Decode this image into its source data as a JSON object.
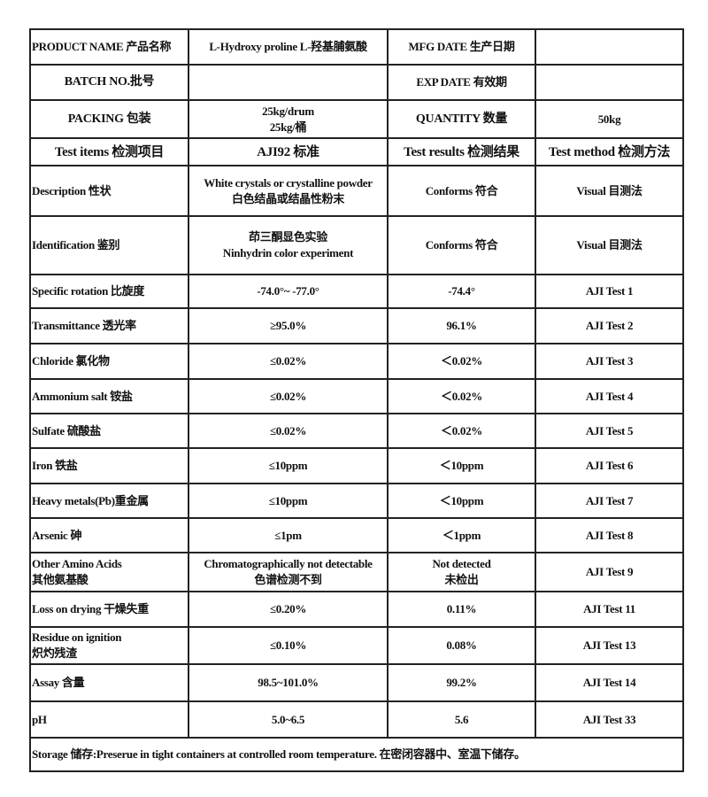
{
  "header": {
    "product_name_label": "PRODUCT NAME 产品名称",
    "product_name_value": "L-Hydroxy proline L-羟基脯氨酸",
    "mfg_date_label": "MFG DATE 生产日期",
    "mfg_date_value": "",
    "batch_no_label": "BATCH NO.批号",
    "batch_no_value": "",
    "exp_date_label": "EXP DATE  有效期",
    "exp_date_value": "",
    "packing_label": "PACKING 包装",
    "packing_value_1": "25kg/drum",
    "packing_value_2": "25kg/桶",
    "quantity_label": "QUANTITY  数量",
    "quantity_value": "50kg"
  },
  "columns": [
    "Test items    检测项目",
    "AJI92  标准",
    "Test results 检测结果",
    "Test method 检测方法"
  ],
  "rows": [
    {
      "item": [
        "Description  性状"
      ],
      "standard": [
        "White crystals or crystalline powder",
        "白色结晶或结晶性粉末"
      ],
      "result": [
        "Conforms  符合"
      ],
      "method": "Visual  目测法"
    },
    {
      "item": [
        "Identification  鉴别"
      ],
      "standard": [
        "茚三酮显色实验",
        "Ninhydrin color experiment"
      ],
      "result": [
        "Conforms  符合"
      ],
      "method": "Visual  目测法"
    },
    {
      "item": [
        "Specific rotation  比旋度"
      ],
      "standard": [
        "-74.0°~ -77.0°"
      ],
      "result": [
        "-74.4°"
      ],
      "method": "AJI Test 1"
    },
    {
      "item": [
        "Transmittance  透光率"
      ],
      "standard": [
        "≥95.0%"
      ],
      "result": [
        "96.1%"
      ],
      "method": "AJI Test 2"
    },
    {
      "item": [
        "Chloride 氯化物"
      ],
      "standard": [
        "≤0.02%"
      ],
      "result": [
        "＜0.02%"
      ],
      "method": "AJI Test 3"
    },
    {
      "item": [
        "Ammonium salt  铵盐"
      ],
      "standard": [
        "≤0.02%"
      ],
      "result": [
        "＜0.02%"
      ],
      "method": "AJI Test 4"
    },
    {
      "item": [
        "Sulfate  硫酸盐"
      ],
      "standard": [
        "≤0.02%"
      ],
      "result": [
        "＜0.02%"
      ],
      "method": "AJI Test 5"
    },
    {
      "item": [
        "Iron  铁盐"
      ],
      "standard": [
        "≤10ppm"
      ],
      "result": [
        "＜10ppm"
      ],
      "method": "AJI Test 6"
    },
    {
      "item": [
        "Heavy metals(Pb)重金属"
      ],
      "standard": [
        "≤10ppm"
      ],
      "result": [
        "＜10ppm"
      ],
      "method": "AJI Test 7"
    },
    {
      "item": [
        "Arsenic  砷"
      ],
      "standard": [
        "≤1pm"
      ],
      "result": [
        "＜1ppm"
      ],
      "method": "AJI Test 8"
    },
    {
      "item": [
        "Other Amino Acids",
        "其他氨基酸"
      ],
      "standard": [
        "Chromatographically not detectable",
        "色谱检测不到"
      ],
      "result": [
        "Not detected",
        "未检出"
      ],
      "method": "AJI Test 9"
    },
    {
      "item": [
        "Loss on drying  干燥失重"
      ],
      "standard": [
        "≤0.20%"
      ],
      "result": [
        "0.11%"
      ],
      "method": "AJI Test 11"
    },
    {
      "item": [
        "Residue on ignition",
        "炽灼残渣"
      ],
      "standard": [
        "≤0.10%"
      ],
      "result": [
        "0.08%"
      ],
      "method": "AJI Test 13"
    },
    {
      "item": [
        "Assay  含量"
      ],
      "standard": [
        "98.5~101.0%"
      ],
      "result": [
        "99.2%"
      ],
      "method": "AJI Test 14"
    },
    {
      "item": [
        "pH"
      ],
      "standard": [
        "5.0~6.5"
      ],
      "result": [
        "5.6"
      ],
      "method": "AJI Test 33"
    }
  ],
  "storage": "Storage 储存:Preserue in tight containers at controlled room temperature.  在密闭容器中、室温下储存。"
}
